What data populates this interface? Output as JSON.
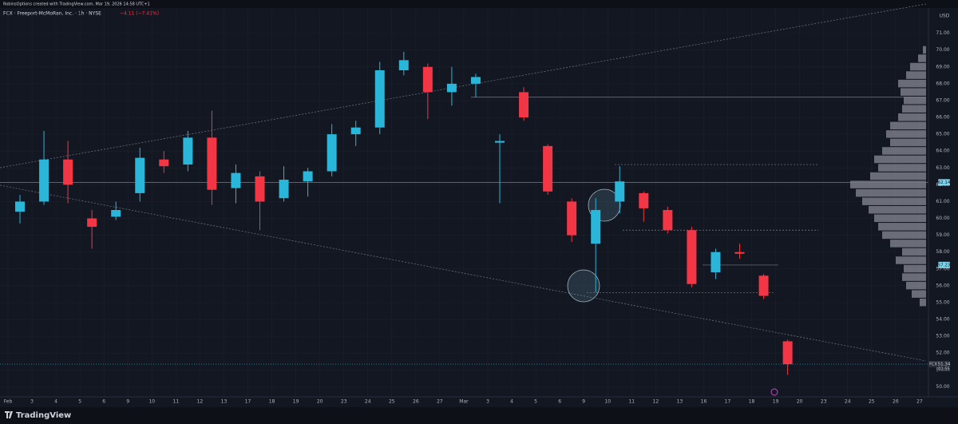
{
  "chart_data": {
    "type": "candlestick",
    "header": "RobinsOptions created with TradingView.com, Mar 19, 2026 14:58 UTC+1",
    "title": "FCX · Freeport-McMoRan, Inc. · 1h · NYSE",
    "change": "−4.11 (−7.41%)",
    "currency": "USD",
    "ticker": "FCX",
    "countdown": "01:55",
    "brand": "TradingView",
    "categories": [
      "Feb",
      "3",
      "4",
      "5",
      "6",
      "9",
      "10",
      "11",
      "12",
      "13",
      "17",
      "18",
      "19",
      "20",
      "23",
      "24",
      "25",
      "26",
      "27",
      "Mar",
      "3",
      "4",
      "5",
      "6",
      "9",
      "10",
      "11",
      "12",
      "13",
      "16",
      "17",
      "18",
      "19",
      "20",
      "23",
      "24",
      "25",
      "26",
      "27"
    ],
    "open": [
      60.4,
      61.0,
      63.5,
      60.0,
      60.1,
      61.5,
      63.5,
      63.2,
      64.8,
      61.8,
      62.5,
      61.2,
      62.2,
      62.8,
      65.0,
      65.4,
      68.8,
      69.0,
      67.5,
      68.0,
      64.5,
      67.5,
      64.3,
      61.0,
      58.5,
      61.0,
      61.5,
      60.5,
      59.3,
      56.8,
      58.0,
      56.6,
      52.7,
      null,
      null,
      null,
      null,
      null,
      null
    ],
    "high": [
      61.4,
      65.2,
      64.6,
      60.5,
      61.0,
      64.2,
      64.0,
      65.2,
      66.4,
      63.2,
      62.8,
      63.1,
      63.0,
      65.6,
      65.8,
      69.3,
      69.9,
      69.2,
      69.0,
      68.6,
      65.0,
      67.8,
      64.4,
      61.2,
      61.2,
      63.1,
      61.6,
      60.7,
      59.5,
      58.2,
      58.5,
      56.7,
      52.8,
      null,
      null,
      null,
      null,
      null,
      null
    ],
    "low": [
      59.7,
      60.8,
      60.9,
      58.2,
      59.9,
      61.0,
      62.7,
      62.8,
      60.8,
      60.9,
      59.3,
      61.0,
      61.3,
      62.5,
      64.3,
      65.0,
      68.5,
      65.9,
      66.7,
      67.2,
      60.9,
      65.8,
      61.4,
      58.6,
      55.6,
      60.3,
      59.8,
      59.1,
      55.9,
      56.4,
      57.6,
      55.2,
      50.7,
      null,
      null,
      null,
      null,
      null,
      null
    ],
    "close": [
      61.0,
      63.5,
      62.0,
      59.5,
      60.5,
      63.6,
      63.1,
      64.8,
      61.7,
      62.7,
      61.0,
      62.3,
      62.8,
      65.0,
      65.4,
      68.8,
      69.4,
      67.5,
      68.0,
      68.4,
      64.6,
      66.0,
      61.6,
      59.0,
      60.5,
      62.2,
      60.6,
      59.3,
      56.1,
      58.0,
      57.9,
      55.4,
      51.34,
      null,
      null,
      null,
      null,
      null,
      null
    ],
    "up_color": "#29b6d9",
    "down_color": "#f23645",
    "ylim": [
      49.4,
      72.5
    ],
    "yticks": [
      {
        "value": 50,
        "label": "50.00"
      },
      {
        "value": 51,
        "label": "51.00"
      },
      {
        "value": 52,
        "label": "52.00"
      },
      {
        "value": 53,
        "label": "53.00"
      },
      {
        "value": 54,
        "label": "54.00"
      },
      {
        "value": 55,
        "label": "55.00"
      },
      {
        "value": 56,
        "label": "56.00"
      },
      {
        "value": 57,
        "label": "57.00"
      },
      {
        "value": 58,
        "label": "58.00"
      },
      {
        "value": 59,
        "label": "59.00"
      },
      {
        "value": 60,
        "label": "60.00"
      },
      {
        "value": 61,
        "label": "61.00"
      },
      {
        "value": 62,
        "label": "62.00"
      },
      {
        "value": 63,
        "label": "63.00"
      },
      {
        "value": 64,
        "label": "64.00"
      },
      {
        "value": 65,
        "label": "65.00"
      },
      {
        "value": 66,
        "label": "66.00"
      },
      {
        "value": 67,
        "label": "67.00"
      },
      {
        "value": 68,
        "label": "68.00"
      },
      {
        "value": 69,
        "label": "69.00"
      },
      {
        "value": 70,
        "label": "70.00"
      },
      {
        "value": 71,
        "label": "71.00"
      }
    ],
    "levels": [
      67.2,
      63.2,
      62.14,
      59.3,
      57.23,
      55.6
    ],
    "volume_profile": {
      "prices": [
        55,
        55.5,
        56,
        56.5,
        57,
        57.5,
        58,
        58.5,
        59,
        59.5,
        60,
        60.5,
        61,
        61.5,
        62,
        62.5,
        63,
        63.5,
        64,
        64.5,
        65,
        65.5,
        66,
        66.5,
        67,
        67.5,
        68,
        68.5,
        69,
        69.5,
        70
      ],
      "values": [
        8,
        18,
        25,
        30,
        28,
        38,
        30,
        45,
        55,
        60,
        65,
        72,
        80,
        88,
        95,
        70,
        60,
        65,
        55,
        45,
        50,
        45,
        35,
        30,
        28,
        32,
        35,
        25,
        20,
        10,
        4
      ]
    },
    "grid": true
  }
}
